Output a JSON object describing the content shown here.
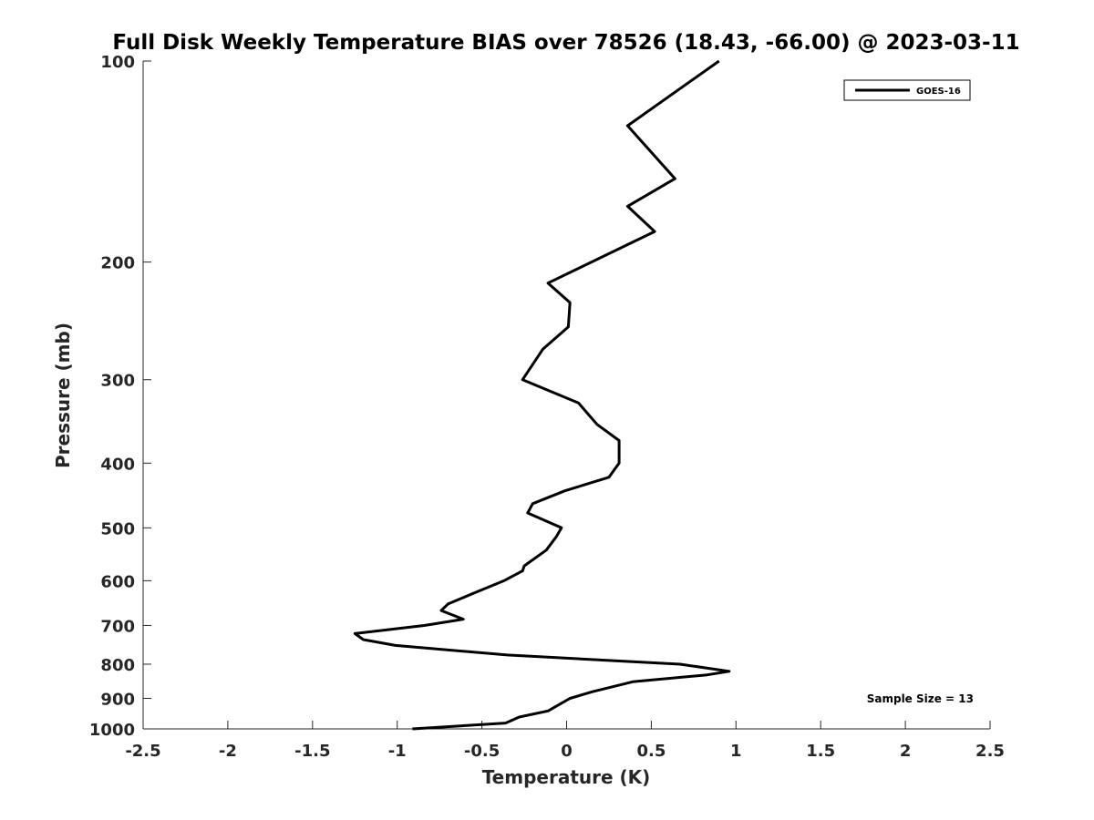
{
  "chart_data": {
    "type": "line",
    "title": "Full Disk Weekly Temperature BIAS over 78526 (18.43, -66.00) @ 2023-03-11",
    "xlabel": "Temperature (K)",
    "ylabel": "Pressure (mb)",
    "xlim": [
      -2.5,
      2.5
    ],
    "ylim": [
      1000,
      100
    ],
    "y_scale": "log",
    "y_reversed": true,
    "grid": false,
    "legend_position": "top-right",
    "x_ticks": [
      -2.5,
      -2,
      -1.5,
      -1,
      -0.5,
      0,
      0.5,
      1,
      1.5,
      2,
      2.5
    ],
    "x_tick_labels": [
      "-2.5",
      "-2",
      "-1.5",
      "-1",
      "-0.5",
      "0",
      "0.5",
      "1",
      "1.5",
      "2",
      "2.5"
    ],
    "y_ticks": [
      100,
      200,
      300,
      400,
      500,
      600,
      700,
      800,
      900,
      1000
    ],
    "y_tick_labels": [
      "100",
      "200",
      "300",
      "400",
      "500",
      "600",
      "700",
      "800",
      "900",
      "1000"
    ],
    "series": [
      {
        "name": "GOES-16",
        "color": "#000000",
        "points": [
          {
            "x": 0.9,
            "y": 100
          },
          {
            "x": 0.36,
            "y": 125
          },
          {
            "x": 0.64,
            "y": 150
          },
          {
            "x": 0.36,
            "y": 165
          },
          {
            "x": 0.52,
            "y": 180
          },
          {
            "x": -0.11,
            "y": 215
          },
          {
            "x": 0.02,
            "y": 230
          },
          {
            "x": 0.01,
            "y": 250
          },
          {
            "x": -0.14,
            "y": 270
          },
          {
            "x": -0.26,
            "y": 300
          },
          {
            "x": 0.07,
            "y": 325
          },
          {
            "x": 0.18,
            "y": 350
          },
          {
            "x": 0.31,
            "y": 370
          },
          {
            "x": 0.31,
            "y": 390
          },
          {
            "x": 0.31,
            "y": 400
          },
          {
            "x": 0.25,
            "y": 420
          },
          {
            "x": -0.01,
            "y": 440
          },
          {
            "x": -0.2,
            "y": 460
          },
          {
            "x": -0.23,
            "y": 475
          },
          {
            "x": -0.03,
            "y": 500
          },
          {
            "x": -0.06,
            "y": 515
          },
          {
            "x": -0.12,
            "y": 540
          },
          {
            "x": -0.25,
            "y": 570
          },
          {
            "x": -0.26,
            "y": 580
          },
          {
            "x": -0.37,
            "y": 600
          },
          {
            "x": -0.54,
            "y": 625
          },
          {
            "x": -0.7,
            "y": 650
          },
          {
            "x": -0.74,
            "y": 665
          },
          {
            "x": -0.61,
            "y": 685
          },
          {
            "x": -0.84,
            "y": 700
          },
          {
            "x": -1.25,
            "y": 720
          },
          {
            "x": -1.2,
            "y": 735
          },
          {
            "x": -1.01,
            "y": 750
          },
          {
            "x": -0.35,
            "y": 775
          },
          {
            "x": 0.67,
            "y": 800
          },
          {
            "x": 0.96,
            "y": 820
          },
          {
            "x": 0.83,
            "y": 830
          },
          {
            "x": 0.39,
            "y": 850
          },
          {
            "x": 0.15,
            "y": 880
          },
          {
            "x": 0.02,
            "y": 900
          },
          {
            "x": -0.11,
            "y": 940
          },
          {
            "x": -0.28,
            "y": 960
          },
          {
            "x": -0.36,
            "y": 980
          },
          {
            "x": -0.91,
            "y": 1000
          }
        ]
      }
    ],
    "annotations": [
      {
        "text": "Sample Size = 13",
        "position": "bottom-right"
      }
    ]
  }
}
